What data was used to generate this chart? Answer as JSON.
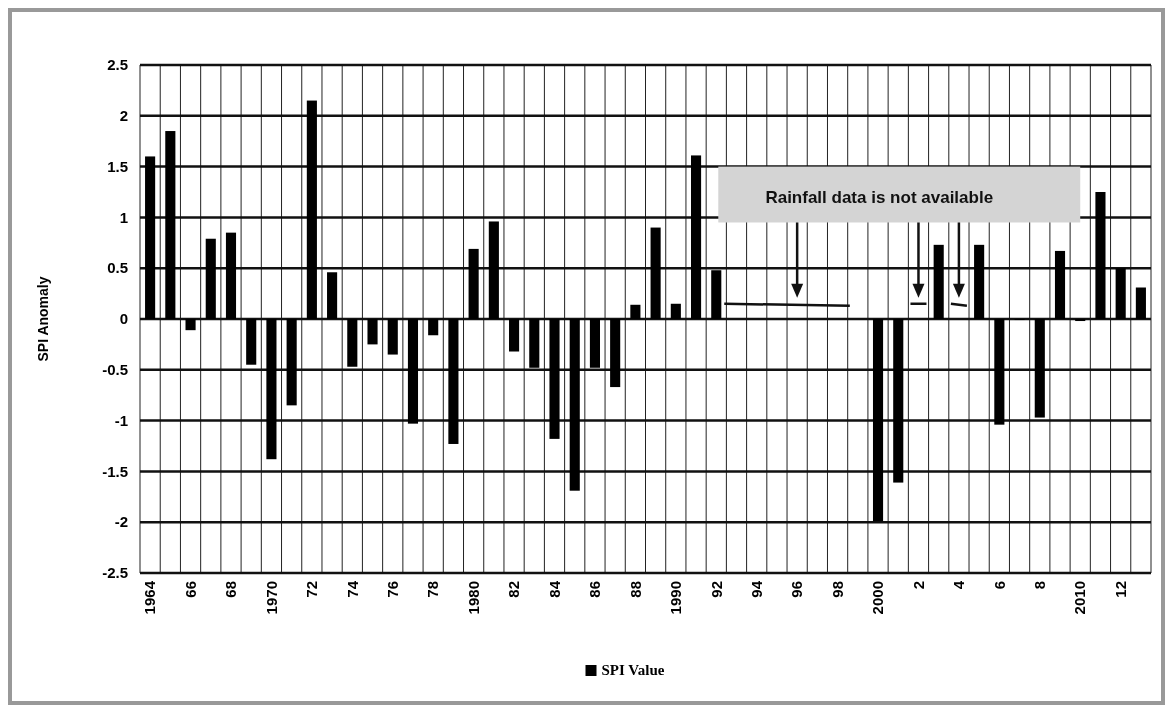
{
  "chart_data": {
    "type": "bar",
    "ylabel": "SPI Anomaly",
    "categories": [
      "1964",
      null,
      "66",
      null,
      "68",
      null,
      "1970",
      null,
      "72",
      null,
      "74",
      null,
      "76",
      null,
      "78",
      null,
      "1980",
      null,
      "82",
      null,
      "84",
      null,
      "86",
      null,
      "88",
      null,
      "1990",
      null,
      "92",
      null,
      "94",
      null,
      "96",
      null,
      "98",
      null,
      "2000",
      null,
      "2",
      null,
      "4",
      null,
      "6",
      null,
      "8",
      null,
      "2010",
      null,
      "12",
      null
    ],
    "series": [
      {
        "name": "SPI Value",
        "color": "#000000",
        "values": [
          1.6,
          1.85,
          -0.11,
          0.79,
          0.85,
          -0.45,
          -1.38,
          -0.85,
          2.15,
          0.46,
          -0.47,
          -0.25,
          -0.35,
          -1.03,
          -0.16,
          -1.23,
          0.69,
          0.96,
          -0.32,
          -0.48,
          -1.18,
          -1.69,
          -0.48,
          -0.67,
          0.14,
          0.9,
          0.15,
          1.61,
          0.48,
          null,
          null,
          null,
          null,
          null,
          null,
          null,
          -1.99,
          -1.61,
          null,
          0.73,
          null,
          0.73,
          -1.04,
          -0.01,
          -0.97,
          0.67,
          -0.02,
          1.25,
          0.5,
          0.31
        ]
      }
    ],
    "ylim": [
      -2.5,
      2.5
    ],
    "yticks": [
      -2.5,
      -2,
      -1.5,
      -1,
      -0.5,
      0,
      0.5,
      1,
      1.5,
      2,
      2.5
    ],
    "grid": true,
    "legend": "bottom",
    "annotations": [
      "Rainfall data is not available"
    ]
  }
}
